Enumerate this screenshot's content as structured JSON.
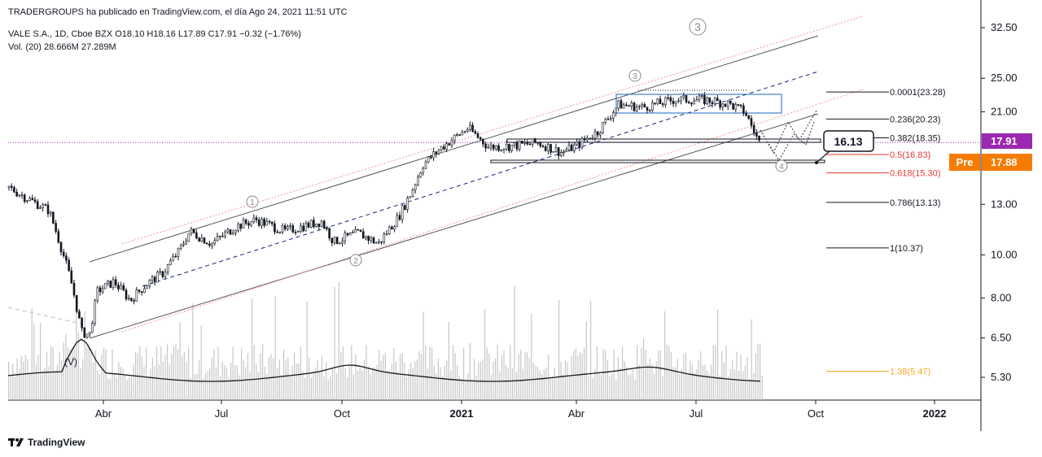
{
  "header": {
    "published": "TRADERGROUPS ha publicado en TradingView.com, el día Ago 24, 2021 11:51 UTC",
    "symbol_line": "VALE S.A., 1D, Cboe BZX  O18.10  H18.16  L17.89  C17.91  −0.32 (−1.76%)",
    "volume_line": "Vol. (20)  28.666M  27.289M"
  },
  "footer": {
    "brand": "TradingView"
  },
  "colors": {
    "candle": "#131722",
    "price_tag": "#9c27b0",
    "pre_tag": "#f57c00",
    "channel": "#555555",
    "midline": "#1a237e",
    "fib_red": "#e53935",
    "fib_orange": "#f9a825",
    "box": "#1565c0"
  },
  "chart_data": {
    "type": "candlestick",
    "title": "VALE S.A., 1D, Cboe BZX",
    "y_scale": "log",
    "ylim": [
      4.6,
      35
    ],
    "x_tick_labels": [
      "Abr",
      "Jul",
      "Oct",
      "2021",
      "Abr",
      "Jul",
      "Oct",
      "2022"
    ],
    "y_tick_labels": [
      "32.50",
      "25.00",
      "21.00",
      "13.00",
      "10.00",
      "8.00",
      "6.50",
      "5.30"
    ],
    "ohlc_last": {
      "open": 18.1,
      "high": 18.16,
      "low": 17.89,
      "close": 17.91,
      "change": -0.32,
      "change_pct": -1.76
    },
    "price_tags": [
      {
        "label": "17.91",
        "value": 17.91
      },
      {
        "label": "Pre",
        "value": 17.88,
        "text": "17.88"
      }
    ],
    "callout": {
      "label": "16.13",
      "value": 16.13
    },
    "volume": {
      "label": "Vol. (20)",
      "values_text": [
        "28.666M",
        "27.289M"
      ]
    },
    "fib_levels": [
      {
        "label": "0.0001(23.28)",
        "value": 23.28
      },
      {
        "label": "0.236(20.23)",
        "value": 20.23
      },
      {
        "label": "0.382(18.35)",
        "value": 18.35
      },
      {
        "label": "0.5(16.83)",
        "value": 16.83
      },
      {
        "label": "0.618(15.30)",
        "value": 15.3
      },
      {
        "label": "0.786(13.13)",
        "value": 13.13
      },
      {
        "label": "1(10.37)",
        "value": 10.37
      },
      {
        "label": "1.38(5.47)",
        "value": 5.47
      }
    ],
    "wave_labels": [
      "1",
      "2",
      "3",
      "4",
      "3",
      "(V)"
    ]
  }
}
